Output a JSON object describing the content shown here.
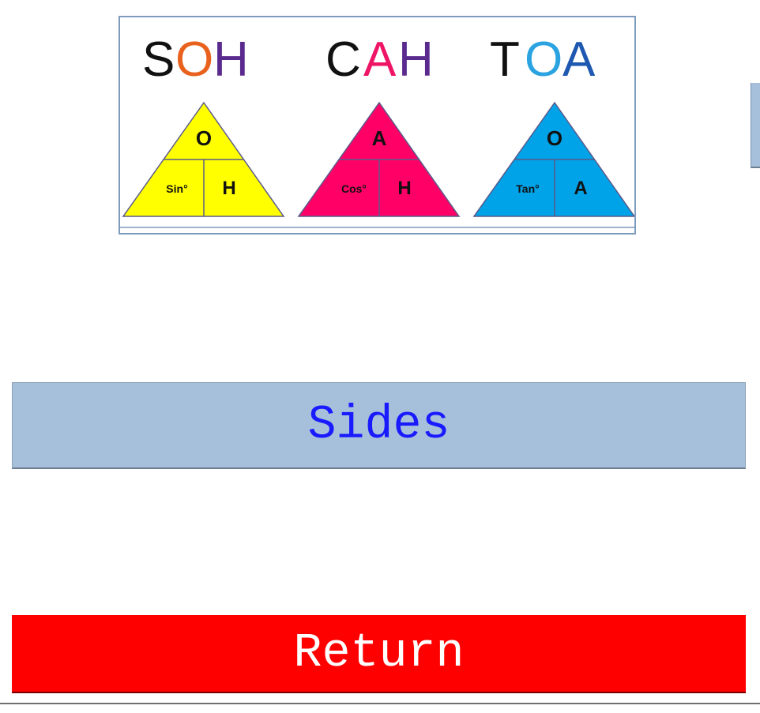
{
  "logo": {
    "headings": [
      {
        "letters": [
          {
            "ch": "S",
            "color": "#111111"
          },
          {
            "ch": "O",
            "color": "#e8621d"
          },
          {
            "ch": "H",
            "color": "#5b2a8e"
          }
        ]
      },
      {
        "letters": [
          {
            "ch": "C",
            "color": "#111111"
          },
          {
            "ch": "A",
            "color": "#ee1566"
          },
          {
            "ch": "H",
            "color": "#5b2a8e"
          }
        ]
      },
      {
        "letters": [
          {
            "ch": "T",
            "color": "#111111"
          },
          {
            "ch": "O",
            "color": "#2aa3e0"
          },
          {
            "ch": "A",
            "color": "#1e58b0"
          }
        ]
      }
    ],
    "triangles": [
      {
        "top": "O",
        "left": "Sin°",
        "right": "H",
        "fill": "#ffff00"
      },
      {
        "top": "A",
        "left": "Cos°",
        "right": "H",
        "fill": "#ff0066"
      },
      {
        "top": "O",
        "left": "Tan°",
        "right": "A",
        "fill": "#00a2e8"
      }
    ]
  },
  "buttons": {
    "sides_label": "Sides",
    "return_label": "Return"
  },
  "colors": {
    "sides_bg": "#a6c0dc",
    "sides_text": "#1a1aff",
    "return_bg": "#ff0000",
    "return_text": "#ffffff"
  }
}
